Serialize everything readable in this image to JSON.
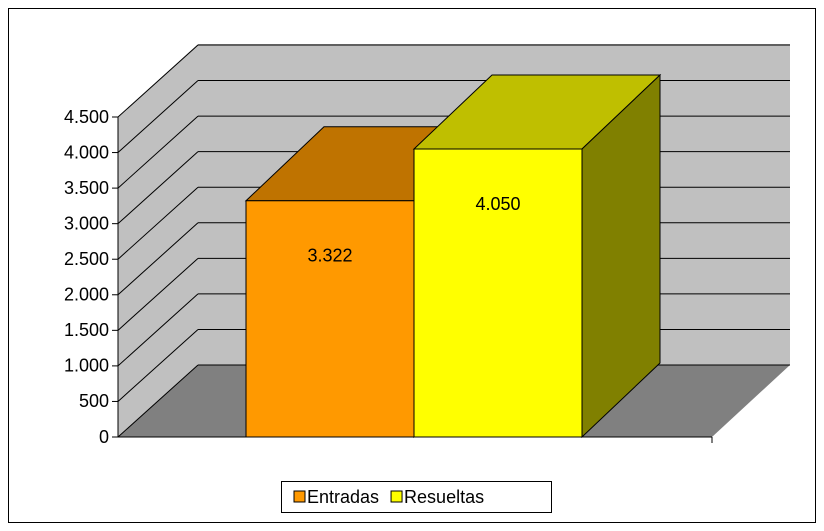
{
  "chart_data": {
    "type": "bar3d",
    "series": [
      {
        "name": "Entradas",
        "color": "#ff9900",
        "values": [
          3322
        ],
        "value_labels": [
          "3.322"
        ]
      },
      {
        "name": "Resueltas",
        "color": "#ffff00",
        "values": [
          4050
        ],
        "value_labels": [
          "4.050"
        ]
      }
    ],
    "ylim": [
      0,
      4500
    ],
    "yticks": [
      0,
      500,
      {
        "value": 1000,
        "label": "1.000"
      },
      {
        "value": 1500,
        "label": "1.500"
      },
      {
        "value": 2000,
        "label": "2.000"
      },
      {
        "value": 2500,
        "label": "2.500"
      },
      {
        "value": 3000,
        "label": "3.000"
      },
      {
        "value": 3500,
        "label": "3.500"
      },
      {
        "value": 4000,
        "label": "4.000"
      },
      {
        "value": 4500,
        "label": "4.500"
      }
    ],
    "grid": true,
    "legend": "bottom"
  }
}
